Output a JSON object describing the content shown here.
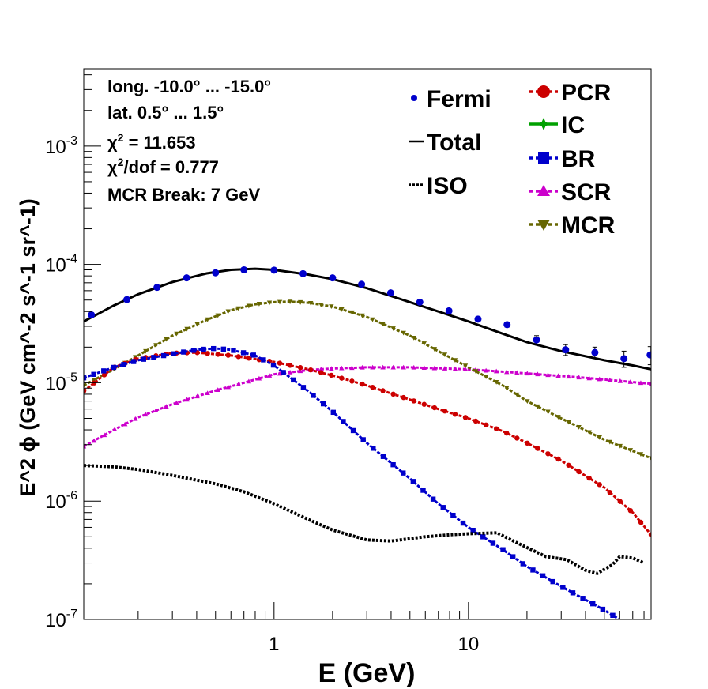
{
  "chart_data": {
    "type": "scatter",
    "xlabel": "E (GeV)",
    "ylabel": "E^2 ϕ (GeV cm^-2 s^-1 sr^-1)",
    "x_scale": "log",
    "y_scale": "log",
    "xlim": [
      0.105,
      87
    ],
    "ylim": [
      1e-07,
      0.0045
    ],
    "x_tick_labels": [
      "1",
      "10"
    ],
    "y_tick_labels": [
      {
        "base": "10",
        "exp": "-7"
      },
      {
        "base": "10",
        "exp": "-6"
      },
      {
        "base": "10",
        "exp": "-5"
      },
      {
        "base": "10",
        "exp": "-4"
      },
      {
        "base": "10",
        "exp": "-3"
      }
    ],
    "info": {
      "longitude": "long. -10.0° ... -15.0°",
      "latitude": "lat. 0.5° ... 1.5°",
      "chi2_symbol": "χ",
      "chi2_value": " = 11.653",
      "chi2dof_value": "/dof = 0.777",
      "mcr_break": "MCR Break:  7 GeV"
    },
    "legend": {
      "placement": "top-right",
      "fermi": "Fermi",
      "total": "Total",
      "iso": "ISO",
      "pcr": "PCR",
      "ic": "IC",
      "br": "BR",
      "scr": "SCR",
      "mcr": "MCR"
    },
    "colors": {
      "fermi": "#0000cc",
      "total": "#000000",
      "iso": "#000000",
      "pcr": "#cc0000",
      "ic": "#00a000",
      "br": "#0000cc",
      "scr": "#cc00cc",
      "mcr": "#666600"
    },
    "series": [
      {
        "name": "Fermi",
        "marker": "circle",
        "x": [
          0.115,
          0.175,
          0.25,
          0.355,
          0.5,
          0.7,
          1.0,
          1.41,
          2.0,
          2.82,
          3.98,
          5.62,
          7.94,
          11.2,
          15.8,
          22.4,
          31.6,
          44.7,
          63.1,
          86.0
        ],
        "y": [
          3.75e-05,
          5.05e-05,
          6.4e-05,
          7.7e-05,
          8.5e-05,
          9e-05,
          8.95e-05,
          8.35e-05,
          7.7e-05,
          6.8e-05,
          5.75e-05,
          4.8e-05,
          4.05e-05,
          3.45e-05,
          3.1e-05,
          2.3e-05,
          1.9e-05,
          1.8e-05,
          1.6e-05,
          1.72e-05
        ],
        "y_err": [
          0,
          0,
          0,
          0,
          0,
          0,
          0,
          0,
          0,
          0,
          0,
          0,
          0,
          0,
          1.5e-06,
          2e-06,
          2e-06,
          2e-06,
          2.5e-06,
          3e-06
        ]
      },
      {
        "name": "Total",
        "style": "solid",
        "x": [
          0.105,
          0.15,
          0.2,
          0.3,
          0.45,
          0.6,
          0.8,
          1.0,
          1.5,
          2.0,
          3.0,
          5.0,
          7.0,
          10,
          15,
          20,
          30,
          50,
          70,
          87
        ],
        "y": [
          3.3e-05,
          4.5e-05,
          5.6e-05,
          7.1e-05,
          8.4e-05,
          9e-05,
          9.2e-05,
          9e-05,
          8.2e-05,
          7.5e-05,
          6.3e-05,
          4.8e-05,
          4e-05,
          3.3e-05,
          2.6e-05,
          2.2e-05,
          1.85e-05,
          1.55e-05,
          1.4e-05,
          1.3e-05
        ]
      },
      {
        "name": "ISO",
        "style": "dotted",
        "x": [
          0.105,
          0.15,
          0.2,
          0.3,
          0.5,
          0.7,
          1.0,
          1.5,
          2.0,
          3.0,
          4.0,
          6.0,
          8.0,
          10,
          14,
          18,
          25,
          32,
          40,
          46,
          55,
          60,
          70,
          80
        ],
        "y": [
          2e-06,
          1.95e-06,
          1.85e-06,
          1.65e-06,
          1.4e-06,
          1.2e-06,
          9.5e-07,
          7e-07,
          5.7e-07,
          4.7e-07,
          4.6e-07,
          5e-07,
          5.2e-07,
          5.3e-07,
          5.4e-07,
          4.4e-07,
          3.4e-07,
          3.2e-07,
          2.6e-07,
          2.45e-07,
          2.9e-07,
          3.4e-07,
          3.3e-07,
          3e-07
        ]
      },
      {
        "name": "PCR",
        "marker": "circle",
        "x": [
          0.105,
          0.15,
          0.2,
          0.3,
          0.4,
          0.6,
          1.0,
          1.5,
          2.0,
          3.0,
          5.0,
          7.0,
          10,
          15,
          20,
          30,
          50,
          70,
          87
        ],
        "y": [
          8.5e-06,
          1.35e-05,
          1.6e-05,
          1.78e-05,
          1.8e-05,
          1.7e-05,
          1.5e-05,
          1.3e-05,
          1.15e-05,
          9.5e-06,
          7.2e-06,
          6e-06,
          5e-06,
          3.9e-06,
          3.1e-06,
          2.2e-06,
          1.3e-06,
          8e-07,
          5.2e-07
        ]
      },
      {
        "name": "BR",
        "marker": "square",
        "x": [
          0.105,
          0.15,
          0.2,
          0.3,
          0.4,
          0.5,
          0.6,
          0.8,
          1.0,
          1.5,
          2.0,
          3.0,
          5.0,
          7.0,
          10,
          15,
          20,
          30,
          50,
          70
        ],
        "y": [
          1.1e-05,
          1.35e-05,
          1.55e-05,
          1.75e-05,
          1.9e-05,
          1.95e-05,
          1.9e-05,
          1.7e-05,
          1.4e-05,
          8.5e-06,
          5.7e-06,
          3.1e-06,
          1.55e-06,
          9.5e-07,
          6e-07,
          3.9e-07,
          2.8e-07,
          1.9e-07,
          1.2e-07,
          8.5e-08
        ]
      },
      {
        "name": "SCR",
        "marker": "triangle-up",
        "x": [
          0.105,
          0.15,
          0.2,
          0.3,
          0.5,
          0.7,
          1.0,
          1.5,
          2.0,
          3.0,
          5.0,
          10,
          20,
          40,
          87
        ],
        "y": [
          2.9e-06,
          4e-06,
          5.1e-06,
          6.6e-06,
          8.6e-06,
          1e-05,
          1.18e-05,
          1.28e-05,
          1.32e-05,
          1.35e-05,
          1.35e-05,
          1.3e-05,
          1.2e-05,
          1.1e-05,
          9.8e-06
        ]
      },
      {
        "name": "MCR",
        "marker": "triangle-down",
        "x": [
          0.105,
          0.15,
          0.2,
          0.3,
          0.45,
          0.6,
          0.8,
          1.0,
          1.2,
          1.5,
          2.0,
          3.0,
          5.0,
          7.0,
          10,
          15,
          20,
          30,
          50,
          87
        ],
        "y": [
          9.5e-06,
          1.3e-05,
          1.7e-05,
          2.5e-05,
          3.4e-05,
          4.1e-05,
          4.6e-05,
          4.8e-05,
          4.85e-05,
          4.75e-05,
          4.4e-05,
          3.6e-05,
          2.5e-05,
          1.85e-05,
          1.35e-05,
          9.5e-06,
          7e-06,
          5e-06,
          3.3e-06,
          2.3e-06
        ]
      }
    ]
  }
}
